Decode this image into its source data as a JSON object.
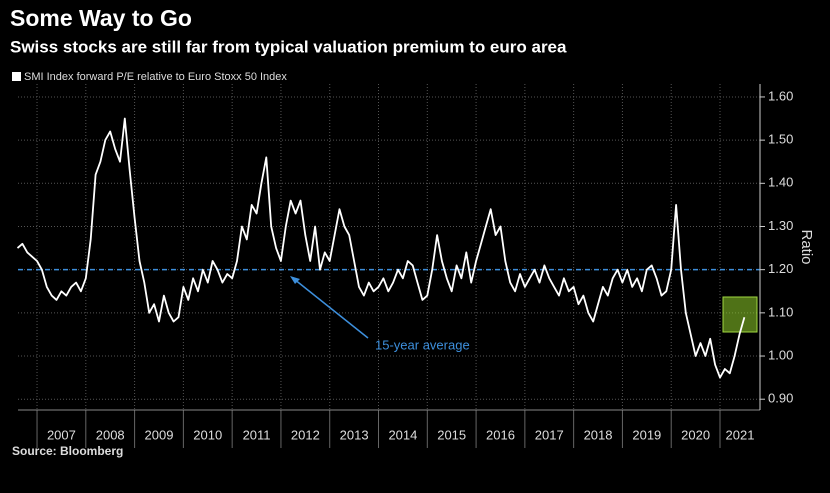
{
  "chart_data": {
    "type": "line",
    "title": "Some Way to Go",
    "subtitle": "Swiss stocks are still far from typical valuation premium to euro area",
    "y_label": "Ratio",
    "source": "Source: Bloomberg",
    "annotation": "15-year average",
    "average": 1.2,
    "average_color": "#3d8fdc",
    "grid": true,
    "xlim": [
      2006.61,
      2021.82
    ],
    "xticks": [
      2007,
      2008,
      2009,
      2010,
      2011,
      2012,
      2013,
      2014,
      2015,
      2016,
      2017,
      2018,
      2019,
      2020,
      2021
    ],
    "ylim": [
      0.875,
      1.63
    ],
    "yticks": [
      {
        "value": 0.9,
        "label": "0.90"
      },
      {
        "value": 1.0,
        "label": "1.00"
      },
      {
        "value": 1.1,
        "label": "1.10"
      },
      {
        "value": 1.2,
        "label": "1.20"
      },
      {
        "value": 1.3,
        "label": "1.30"
      },
      {
        "value": 1.4,
        "label": "1.40"
      },
      {
        "value": 1.5,
        "label": "1.50"
      },
      {
        "value": 1.6,
        "label": "1.60"
      }
    ],
    "x": [
      2006.6,
      2006.7,
      2006.8,
      2006.9,
      2007.0,
      2007.1,
      2007.2,
      2007.3,
      2007.4,
      2007.5,
      2007.6,
      2007.7,
      2007.8,
      2007.9,
      2008.0,
      2008.1,
      2008.2,
      2008.3,
      2008.4,
      2008.5,
      2008.6,
      2008.7,
      2008.8,
      2008.9,
      2009.0,
      2009.1,
      2009.2,
      2009.3,
      2009.4,
      2009.5,
      2009.6,
      2009.7,
      2009.8,
      2009.9,
      2010.0,
      2010.1,
      2010.2,
      2010.3,
      2010.4,
      2010.5,
      2010.6,
      2010.7,
      2010.8,
      2010.9,
      2011.0,
      2011.1,
      2011.2,
      2011.3,
      2011.4,
      2011.5,
      2011.6,
      2011.7,
      2011.8,
      2011.9,
      2012.0,
      2012.1,
      2012.2,
      2012.3,
      2012.4,
      2012.5,
      2012.6,
      2012.7,
      2012.8,
      2012.9,
      2013.0,
      2013.1,
      2013.2,
      2013.3,
      2013.4,
      2013.5,
      2013.6,
      2013.7,
      2013.8,
      2013.9,
      2014.0,
      2014.1,
      2014.2,
      2014.3,
      2014.4,
      2014.5,
      2014.6,
      2014.7,
      2014.8,
      2014.9,
      2015.0,
      2015.1,
      2015.2,
      2015.3,
      2015.4,
      2015.5,
      2015.6,
      2015.7,
      2015.8,
      2015.9,
      2016.0,
      2016.1,
      2016.2,
      2016.3,
      2016.4,
      2016.5,
      2016.6,
      2016.7,
      2016.8,
      2016.9,
      2017.0,
      2017.1,
      2017.2,
      2017.3,
      2017.4,
      2017.5,
      2017.6,
      2017.7,
      2017.8,
      2017.9,
      2018.0,
      2018.1,
      2018.2,
      2018.3,
      2018.4,
      2018.5,
      2018.6,
      2018.7,
      2018.8,
      2018.9,
      2019.0,
      2019.1,
      2019.2,
      2019.3,
      2019.4,
      2019.5,
      2019.6,
      2019.7,
      2019.8,
      2019.9,
      2020.0,
      2020.1,
      2020.2,
      2020.3,
      2020.4,
      2020.5,
      2020.6,
      2020.7,
      2020.8,
      2020.9,
      2021.0,
      2021.1,
      2021.2,
      2021.3,
      2021.4,
      2021.5
    ],
    "series": [
      {
        "name": "SMI Index forward P/E relative to Euro Stoxx 50 Index",
        "color": "#ffffff",
        "values": [
          1.25,
          1.26,
          1.24,
          1.23,
          1.22,
          1.2,
          1.16,
          1.14,
          1.13,
          1.15,
          1.14,
          1.16,
          1.17,
          1.15,
          1.18,
          1.27,
          1.42,
          1.45,
          1.5,
          1.52,
          1.48,
          1.45,
          1.55,
          1.43,
          1.32,
          1.22,
          1.17,
          1.1,
          1.12,
          1.08,
          1.14,
          1.1,
          1.08,
          1.09,
          1.16,
          1.13,
          1.18,
          1.15,
          1.2,
          1.17,
          1.22,
          1.2,
          1.17,
          1.19,
          1.18,
          1.22,
          1.3,
          1.27,
          1.35,
          1.33,
          1.4,
          1.46,
          1.3,
          1.25,
          1.22,
          1.3,
          1.36,
          1.33,
          1.36,
          1.28,
          1.22,
          1.3,
          1.2,
          1.24,
          1.22,
          1.28,
          1.34,
          1.3,
          1.28,
          1.22,
          1.16,
          1.14,
          1.17,
          1.15,
          1.16,
          1.18,
          1.15,
          1.17,
          1.2,
          1.18,
          1.22,
          1.21,
          1.17,
          1.13,
          1.14,
          1.2,
          1.28,
          1.22,
          1.18,
          1.15,
          1.21,
          1.18,
          1.24,
          1.17,
          1.22,
          1.26,
          1.3,
          1.34,
          1.28,
          1.3,
          1.22,
          1.17,
          1.15,
          1.19,
          1.16,
          1.18,
          1.2,
          1.17,
          1.21,
          1.18,
          1.16,
          1.14,
          1.18,
          1.15,
          1.16,
          1.12,
          1.14,
          1.1,
          1.08,
          1.12,
          1.16,
          1.14,
          1.18,
          1.2,
          1.17,
          1.2,
          1.16,
          1.18,
          1.15,
          1.2,
          1.21,
          1.18,
          1.14,
          1.15,
          1.2,
          1.35,
          1.2,
          1.1,
          1.05,
          1.0,
          1.03,
          1.0,
          1.04,
          0.98,
          0.95,
          0.97,
          0.96,
          1.0,
          1.05,
          1.09
        ]
      }
    ]
  }
}
